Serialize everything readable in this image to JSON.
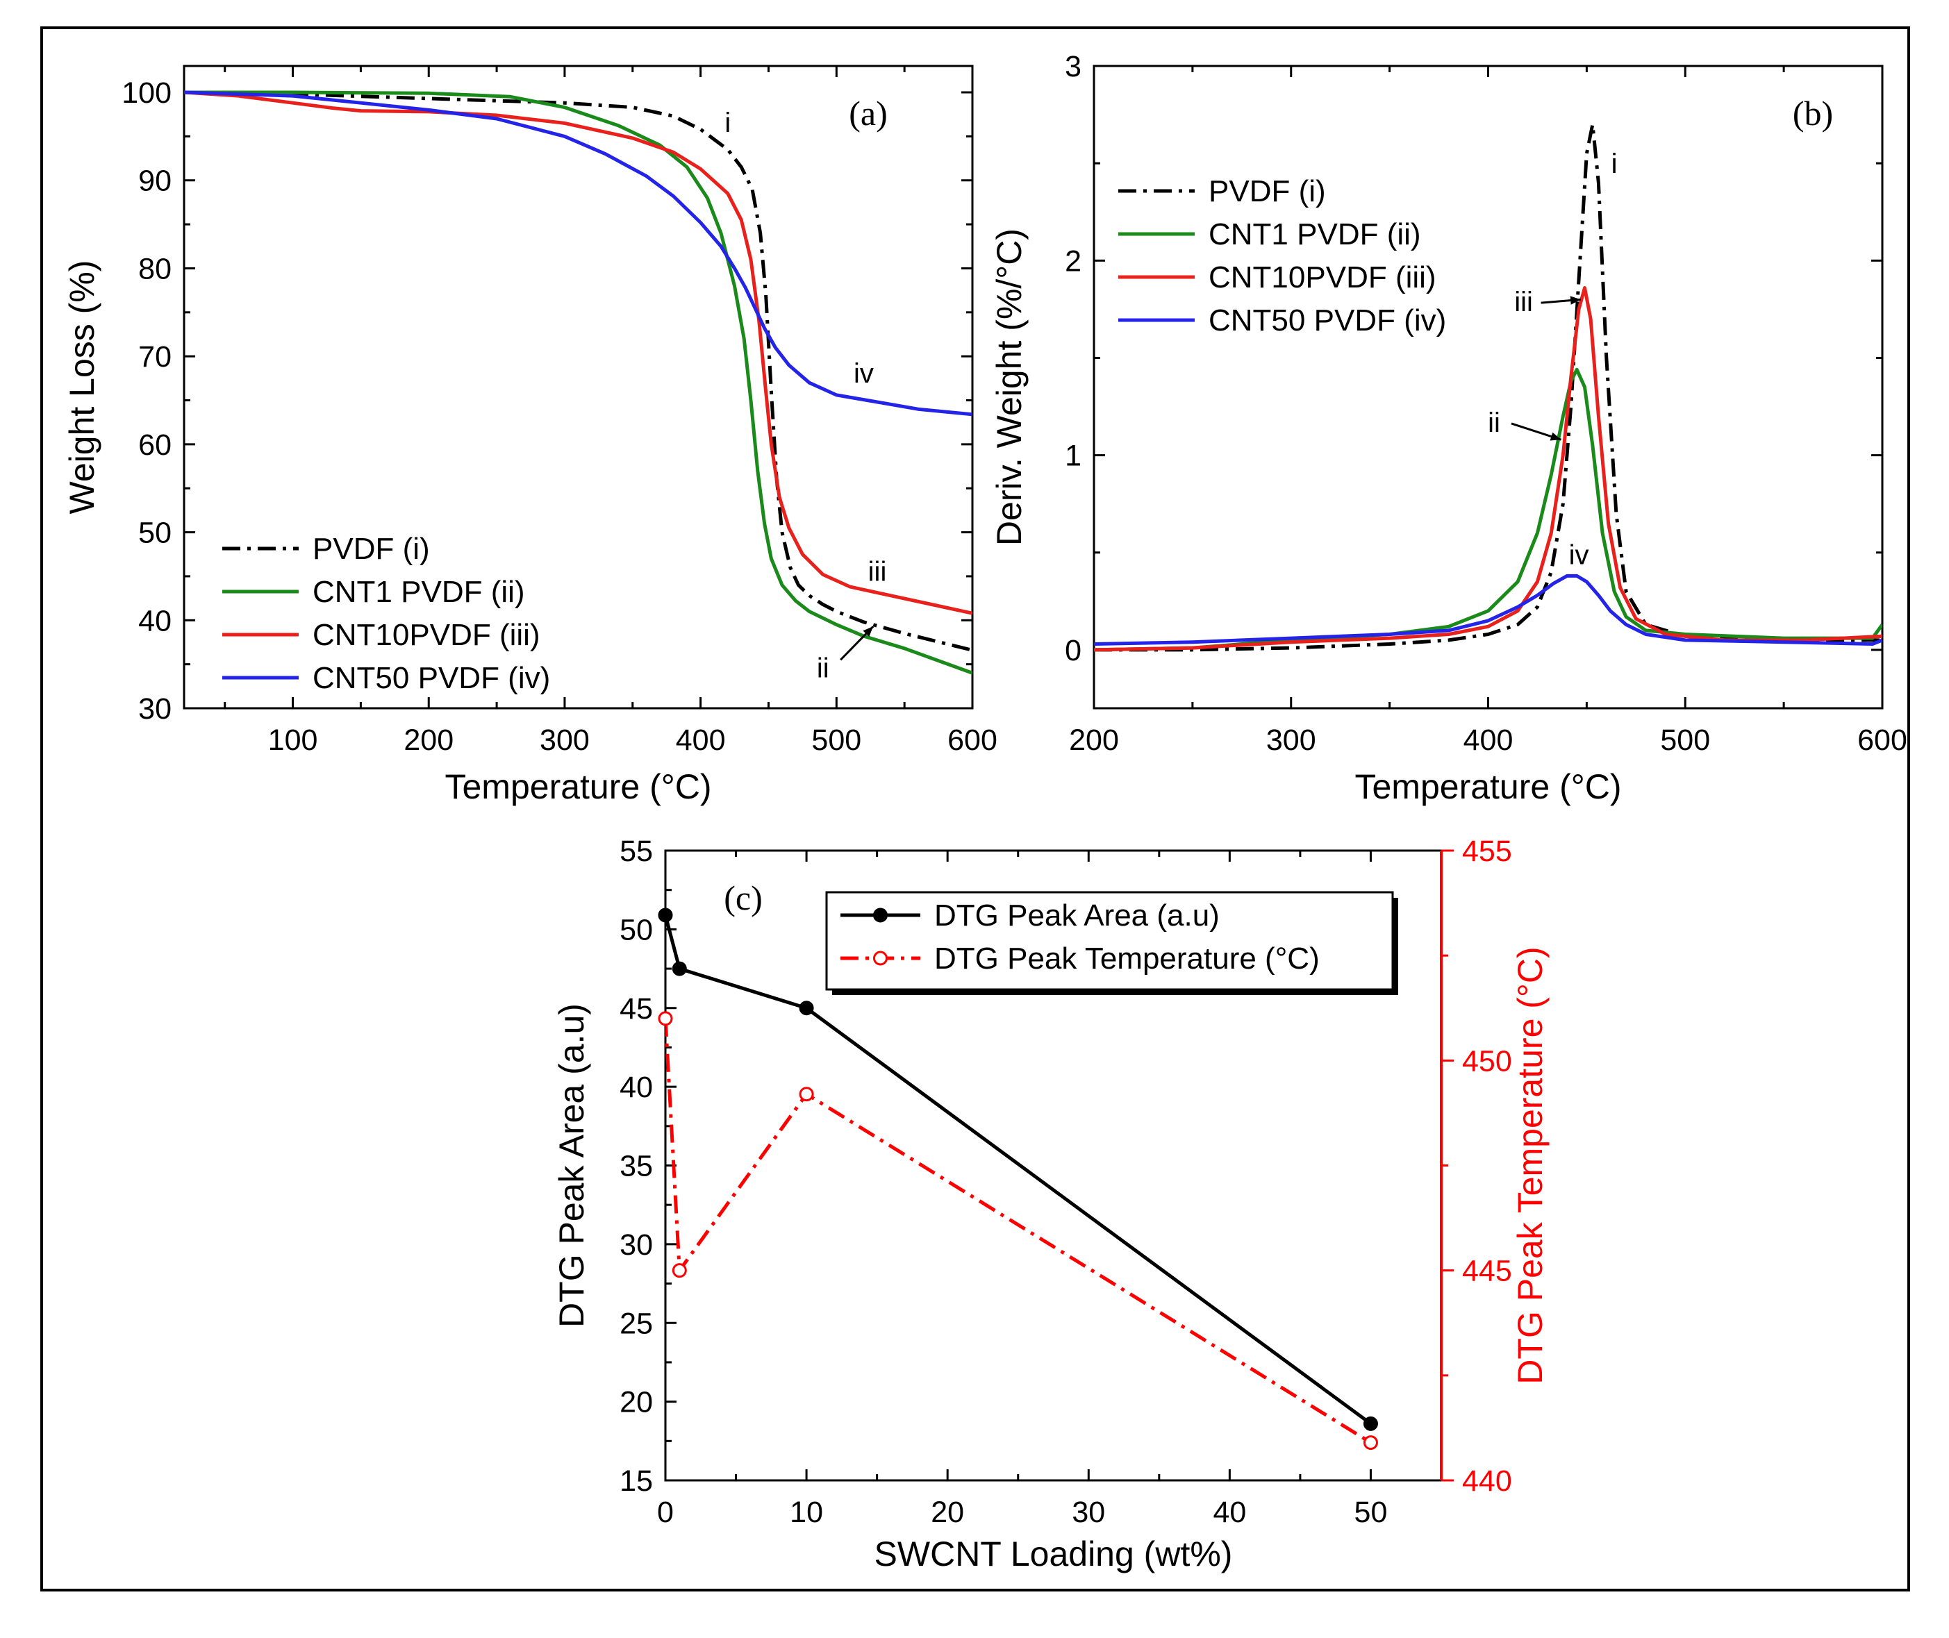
{
  "chart_data": [
    {
      "id": "a",
      "type": "line",
      "panel_label": "(a)",
      "xlabel": "Temperature (°C)",
      "ylabel": "Weight Loss (%)",
      "xlim": [
        20,
        600
      ],
      "ylim": [
        30,
        103
      ],
      "xticks": [
        100,
        200,
        300,
        400,
        500,
        600
      ],
      "yticks": [
        30,
        40,
        50,
        60,
        70,
        80,
        90,
        100
      ],
      "legend_position": "bottom-left",
      "series": [
        {
          "name": "PVDF (i)",
          "color": "#000000",
          "style": "dashdot",
          "x": [
            20,
            100,
            200,
            300,
            350,
            380,
            400,
            420,
            430,
            438,
            444,
            448,
            452,
            456,
            460,
            466,
            472,
            480,
            490,
            500,
            520,
            550,
            600
          ],
          "y": [
            100,
            99.8,
            99.3,
            98.8,
            98.3,
            97.3,
            95.8,
            93.5,
            91.5,
            89,
            84,
            77,
            66,
            56,
            50,
            46,
            44,
            42.8,
            41.8,
            41,
            39.8,
            38.5,
            36.6
          ]
        },
        {
          "name": "CNT1 PVDF (ii)",
          "color": "#1a8a1a",
          "style": "solid",
          "x": [
            20,
            100,
            200,
            260,
            300,
            340,
            370,
            390,
            405,
            415,
            425,
            432,
            437,
            442,
            447,
            452,
            460,
            470,
            480,
            500,
            520,
            550,
            600
          ],
          "y": [
            100,
            100,
            99.9,
            99.5,
            98.3,
            96.2,
            94,
            91.5,
            88,
            84,
            78,
            72,
            65,
            57,
            51,
            47,
            44,
            42.2,
            41,
            39.5,
            38.2,
            36.8,
            34
          ]
        },
        {
          "name": "CNT10PVDF (iii)",
          "color": "#e8211d",
          "style": "solid",
          "x": [
            20,
            60,
            100,
            130,
            150,
            200,
            250,
            300,
            350,
            380,
            400,
            420,
            430,
            437,
            443,
            448,
            452,
            458,
            465,
            475,
            490,
            510,
            540,
            570,
            600
          ],
          "y": [
            100,
            99.6,
            98.8,
            98.2,
            97.9,
            97.8,
            97.4,
            96.5,
            94.8,
            93.2,
            91.3,
            88.5,
            85.5,
            81,
            74,
            66,
            60,
            54,
            50.5,
            47.5,
            45.2,
            43.8,
            42.8,
            41.8,
            40.8
          ]
        },
        {
          "name": "CNT50 PVDF (iv)",
          "color": "#2424e8",
          "style": "solid",
          "x": [
            20,
            100,
            150,
            200,
            250,
            300,
            330,
            360,
            380,
            400,
            415,
            425,
            433,
            440,
            447,
            455,
            465,
            480,
            500,
            530,
            560,
            600
          ],
          "y": [
            100,
            99.6,
            98.8,
            98,
            97,
            95,
            93,
            90.5,
            88.2,
            85.2,
            82.5,
            80,
            77.8,
            75.5,
            73.2,
            71,
            69,
            67,
            65.6,
            64.8,
            64,
            63.4
          ]
        }
      ],
      "annotations": [
        {
          "text": "i",
          "x": 420,
          "y": 95.5
        },
        {
          "text": "ii",
          "x": 490,
          "y": 33.5
        },
        {
          "text": "iii",
          "x": 530,
          "y": 44.5
        },
        {
          "text": "iv",
          "x": 520,
          "y": 67
        }
      ]
    },
    {
      "id": "b",
      "type": "line",
      "panel_label": "(b)",
      "xlabel": "Temperature (°C)",
      "ylabel": "Deriv. Weight (%/°C)",
      "xlim": [
        200,
        600
      ],
      "ylim": [
        -0.3,
        3
      ],
      "xticks": [
        200,
        300,
        400,
        500,
        600
      ],
      "yticks": [
        0,
        1,
        2,
        3
      ],
      "legend_position": "top-left",
      "series": [
        {
          "name": "PVDF (i)",
          "color": "#000000",
          "style": "dashdot",
          "x": [
            200,
            250,
            300,
            350,
            380,
            400,
            415,
            425,
            432,
            438,
            442,
            446,
            450,
            453,
            456,
            460,
            465,
            470,
            480,
            500,
            550,
            600
          ],
          "y": [
            0,
            0,
            0.01,
            0.03,
            0.05,
            0.08,
            0.13,
            0.22,
            0.4,
            0.75,
            1.25,
            1.9,
            2.55,
            2.7,
            2.4,
            1.5,
            0.7,
            0.3,
            0.13,
            0.07,
            0.05,
            0.05
          ]
        },
        {
          "name": "CNT1 PVDF (ii)",
          "color": "#1a8a1a",
          "style": "solid",
          "x": [
            200,
            250,
            300,
            350,
            380,
            400,
            415,
            425,
            432,
            438,
            442,
            445,
            449,
            453,
            458,
            464,
            470,
            480,
            500,
            550,
            595,
            600
          ],
          "y": [
            0,
            0.01,
            0.05,
            0.08,
            0.12,
            0.2,
            0.35,
            0.6,
            0.9,
            1.2,
            1.38,
            1.44,
            1.35,
            1.05,
            0.6,
            0.3,
            0.17,
            0.1,
            0.08,
            0.06,
            0.06,
            0.13
          ]
        },
        {
          "name": "CNT10PVDF (iii)",
          "color": "#e8211d",
          "style": "solid",
          "x": [
            200,
            250,
            300,
            350,
            380,
            400,
            415,
            425,
            432,
            438,
            442,
            446,
            449,
            452,
            456,
            461,
            467,
            475,
            490,
            520,
            560,
            600
          ],
          "y": [
            0,
            0.01,
            0.04,
            0.06,
            0.08,
            0.12,
            0.2,
            0.35,
            0.6,
            1.0,
            1.4,
            1.75,
            1.86,
            1.7,
            1.2,
            0.65,
            0.32,
            0.16,
            0.08,
            0.05,
            0.05,
            0.07
          ]
        },
        {
          "name": "CNT50 PVDF (iv)",
          "color": "#2424e8",
          "style": "solid",
          "x": [
            200,
            250,
            300,
            350,
            380,
            400,
            415,
            425,
            433,
            440,
            445,
            450,
            456,
            462,
            470,
            480,
            500,
            550,
            595,
            600
          ],
          "y": [
            0.03,
            0.04,
            0.06,
            0.08,
            0.1,
            0.15,
            0.22,
            0.28,
            0.34,
            0.38,
            0.38,
            0.35,
            0.28,
            0.2,
            0.13,
            0.08,
            0.05,
            0.04,
            0.03,
            0.05
          ]
        }
      ],
      "annotations": [
        {
          "text": "i",
          "x": 464,
          "y": 2.45,
          "arrow": false
        },
        {
          "text": "ii",
          "x": 403,
          "y": 1.12,
          "arrow_to": [
            437,
            1.08
          ]
        },
        {
          "text": "iii",
          "x": 418,
          "y": 1.74,
          "arrow_to": [
            447,
            1.8
          ]
        },
        {
          "text": "iv",
          "x": 446,
          "y": 0.44,
          "arrow": false
        }
      ]
    },
    {
      "id": "c",
      "type": "line",
      "panel_label": "(c)",
      "xlabel": "SWCNT Loading (wt%)",
      "ylabel": "DTG Peak Area (a.u)",
      "ylabel_right": "DTG Peak Temperature (°C)",
      "xlim": [
        0,
        55
      ],
      "ylim": [
        15,
        55
      ],
      "ylim_right": [
        440,
        455
      ],
      "xticks": [
        0,
        10,
        20,
        30,
        40,
        50
      ],
      "yticks": [
        15,
        20,
        25,
        30,
        35,
        40,
        45,
        50,
        55
      ],
      "yticks_right": [
        440,
        445,
        450,
        455
      ],
      "right_axis_color": "#ff0000",
      "legend_position": "top-right",
      "series": [
        {
          "name": "DTG Peak Area (a.u)",
          "color": "#000000",
          "style": "solid",
          "marker": "filled-circle",
          "axis": "left",
          "x": [
            0,
            1,
            10,
            50
          ],
          "y": [
            50.9,
            47.5,
            45,
            18.6
          ]
        },
        {
          "name": "DTG Peak Temperature (°C)",
          "color": "#ff0000",
          "style": "dashdot",
          "marker": "open-circle",
          "axis": "right",
          "x": [
            0,
            1,
            10,
            50
          ],
          "y": [
            451,
            445,
            449.2,
            440.9
          ]
        }
      ]
    }
  ]
}
